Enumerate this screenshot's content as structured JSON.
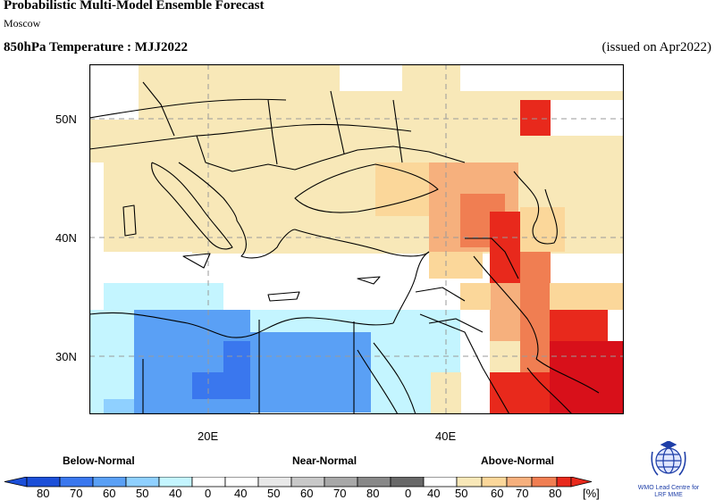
{
  "header": {
    "title": "Probabilistic Multi-Model Ensemble Forecast",
    "subtitle": "Moscow",
    "variable": "850hPa Temperature : MJJ2022",
    "issued": "(issued on Apr2022)"
  },
  "map": {
    "lat_labels": [
      "50N",
      "40N",
      "30N"
    ],
    "lon_labels": [
      "20E",
      "40E"
    ],
    "colors": {
      "below_80": "#1c4fd8",
      "below_70": "#3a77ee",
      "below_60": "#5aa0f5",
      "below_50": "#8fd0ff",
      "below_40": "#c4f5ff",
      "near_normal": "#ffffff",
      "above_40": "#f8e8b8",
      "above_50": "#fbd79a",
      "above_60": "#f6b07d",
      "above_70": "#f07e52",
      "above_80": "#e8291c",
      "above_90": "#d8101a"
    }
  },
  "legend": {
    "below_label": "Below-Normal",
    "near_label": "Near-Normal",
    "above_label": "Above-Normal",
    "ticks": [
      "80",
      "70",
      "60",
      "50",
      "40",
      "0",
      "40",
      "50",
      "60",
      "70",
      "80",
      "0",
      "40",
      "50",
      "60",
      "70",
      "80",
      "[%]"
    ],
    "below_colors": [
      "#1c4fd8",
      "#3a77ee",
      "#5aa0f5",
      "#8fd0ff",
      "#c4f5ff"
    ],
    "near_colors": [
      "#e8e8e8",
      "#c8c8c8",
      "#a8a8a8",
      "#888888",
      "#686868"
    ],
    "above_colors": [
      "#f8e8b8",
      "#fbd79a",
      "#f6b07d",
      "#f07e52",
      "#e8291c"
    ]
  },
  "logo": {
    "line1": "WMO Lead Centre for",
    "line2": "LRF MME"
  }
}
